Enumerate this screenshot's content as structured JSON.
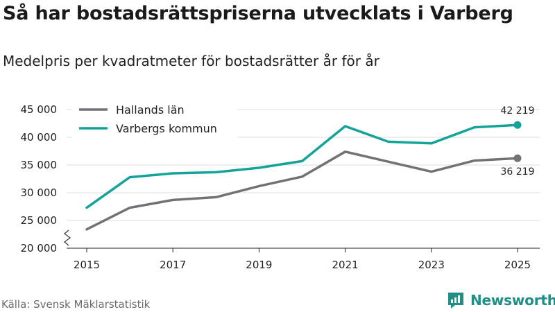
{
  "title": "Så har bostadsrättspriserna utvecklats i Varberg",
  "subtitle": "Medelpris per kvadratmeter för bostadsrätter år för år",
  "source": "Källa: Svensk Mäklarstatistik",
  "brand": {
    "name": "Newsworthy",
    "icon": "newsworthy-logo-icon",
    "color": "#1f8f88"
  },
  "chart_data": {
    "type": "line",
    "title": "Så har bostadsrättspriserna utvecklats i Varberg",
    "subtitle": "Medelpris per kvadratmeter för bostadsrätter år för år",
    "xlabel": "",
    "ylabel": "",
    "x": [
      2015,
      2016,
      2017,
      2018,
      2019,
      2020,
      2021,
      2022,
      2023,
      2024,
      2025
    ],
    "xlim": [
      2015,
      2025
    ],
    "ylim": [
      20000,
      45000
    ],
    "yticks": [
      20000,
      25000,
      30000,
      35000,
      40000,
      45000
    ],
    "ytick_labels": [
      "20 000",
      "25 000",
      "30 000",
      "35 000",
      "40 000",
      "45 000"
    ],
    "xticks": [
      2015,
      2017,
      2019,
      2021,
      2023,
      2025
    ],
    "xtick_labels": [
      "2015",
      "2017",
      "2019",
      "2021",
      "2023",
      "2025"
    ],
    "axis_break": true,
    "grid": "horizontal",
    "legend_position": "top-left",
    "series": [
      {
        "name": "Hallands län",
        "color": "#727176",
        "values": [
          23400,
          27300,
          28700,
          29200,
          31200,
          32900,
          37400,
          35600,
          33800,
          35800,
          36219
        ],
        "end_label": "36 219",
        "end_label_position": "below"
      },
      {
        "name": "Varbergs kommun",
        "color": "#14a399",
        "values": [
          27300,
          32800,
          33500,
          33700,
          34500,
          35700,
          42000,
          39200,
          38900,
          41800,
          42219
        ],
        "end_label": "42 219",
        "end_label_position": "above"
      }
    ]
  }
}
